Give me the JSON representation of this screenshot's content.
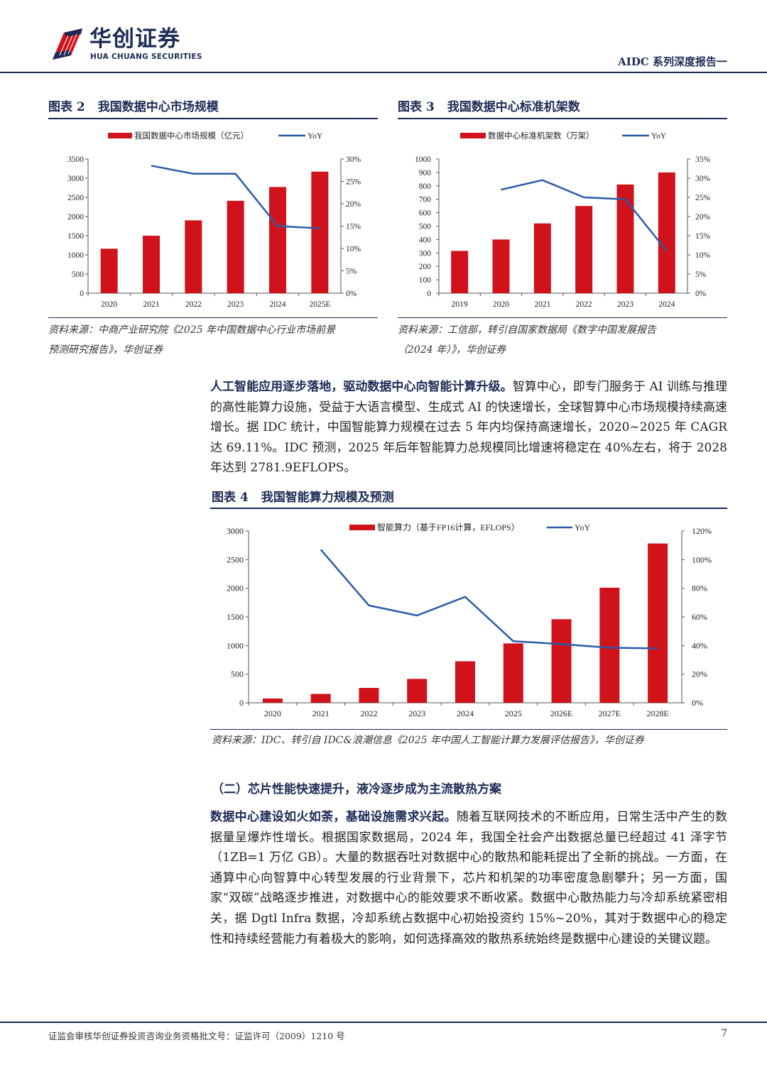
{
  "header": {
    "logo_cn": "华创证券",
    "logo_en": "HUA CHUANG SECURITIES",
    "report_series": "AIDC 系列深度报告一",
    "brand_colors": {
      "navy": "#1d2a55",
      "red": "#d0121b"
    }
  },
  "figure2": {
    "label": "图表 2",
    "title": "我国数据中心市场规模",
    "source_line1": "资料来源：中商产业研究院《2025 年中国数据中心行业市场前景",
    "source_line2": "预测研究报告》，华创证券"
  },
  "figure3": {
    "label": "图表 3",
    "title": "我国数据中心标准机架数",
    "source_line1": "资料来源：工信部，转引自国家数据局《数字中国发展报告",
    "source_line2": "（2024 年）》，华创证券"
  },
  "figure4": {
    "label": "图表 4",
    "title": "我国智能算力规模及预测",
    "source": "资料来源：IDC、转引自 IDC&浪潮信息《2025 年中国人工智能计算力发展评估报告》，华创证券"
  },
  "chart_data": [
    {
      "type": "bar",
      "categories": [
        "2020",
        "2021",
        "2022",
        "2023",
        "2024",
        "2025E"
      ],
      "series": [
        {
          "name": "我国数据中心市场规模（亿元）",
          "type": "bar",
          "axis": "left",
          "color": "#d0121b",
          "values": [
            1160,
            1500,
            1900,
            2410,
            2770,
            3170
          ]
        },
        {
          "name": "YoY",
          "type": "line",
          "axis": "right",
          "color": "#2a5ba8",
          "values": [
            null,
            0.285,
            0.267,
            0.267,
            0.15,
            0.145
          ]
        }
      ],
      "left_axis": {
        "min": 0,
        "max": 3500,
        "ticks": [
          "0",
          "500",
          "1000",
          "1500",
          "2000",
          "2500",
          "3000",
          "3500"
        ]
      },
      "right_axis": {
        "min": 0,
        "max": 0.3,
        "ticks": [
          "0%",
          "5%",
          "10%",
          "15%",
          "20%",
          "25%",
          "30%"
        ]
      },
      "legend_position": "top-center"
    },
    {
      "type": "bar",
      "categories": [
        "2019",
        "2020",
        "2021",
        "2022",
        "2023",
        "2024"
      ],
      "series": [
        {
          "name": "数据中心标准机架数（万架）",
          "type": "bar",
          "axis": "left",
          "color": "#d0121b",
          "values": [
            315,
            400,
            520,
            650,
            810,
            900
          ]
        },
        {
          "name": "YoY",
          "type": "line",
          "axis": "right",
          "color": "#2a5ba8",
          "values": [
            null,
            0.27,
            0.295,
            0.25,
            0.245,
            0.11
          ]
        }
      ],
      "left_axis": {
        "min": 0,
        "max": 1000,
        "ticks": [
          "0",
          "100",
          "200",
          "300",
          "400",
          "500",
          "600",
          "700",
          "800",
          "900",
          "1000"
        ]
      },
      "right_axis": {
        "min": 0,
        "max": 0.35,
        "ticks": [
          "0%",
          "5%",
          "10%",
          "15%",
          "20%",
          "25%",
          "30%",
          "35%"
        ]
      },
      "legend_position": "top-center"
    },
    {
      "type": "bar",
      "categories": [
        "2020",
        "2021",
        "2022",
        "2023",
        "2024",
        "2025",
        "2026E",
        "2027E",
        "2028E"
      ],
      "series": [
        {
          "name": "智能算力（基于FP16计算，EFLOPS）",
          "type": "bar",
          "axis": "left",
          "color": "#d0121b",
          "values": [
            75,
            155,
            260,
            417,
            725,
            1037,
            1460,
            2010,
            2781.9
          ]
        },
        {
          "name": "YoY",
          "type": "line",
          "axis": "right",
          "color": "#2a5ba8",
          "values": [
            null,
            1.07,
            0.68,
            0.61,
            0.74,
            0.43,
            0.41,
            0.385,
            0.38
          ]
        }
      ],
      "left_axis": {
        "min": 0,
        "max": 3000,
        "ticks": [
          "0",
          "500",
          "1000",
          "1500",
          "2000",
          "2500",
          "3000"
        ]
      },
      "right_axis": {
        "min": 0,
        "max": 1.2,
        "ticks": [
          "0%",
          "20%",
          "40%",
          "60%",
          "80%",
          "100%",
          "120%"
        ]
      },
      "legend_position": "top-center"
    }
  ],
  "para1": {
    "bold": "人工智能应用逐步落地，驱动数据中心向智能计算升级。",
    "text": "智算中心，即专门服务于 AI 训练与推理的高性能算力设施，受益于大语言模型、生成式 AI 的快速增长，全球智算中心市场规模持续高速增长。据 IDC 统计，中国智能算力规模在过去 5 年内均保持高速增长，2020~2025 年 CAGR 达 69.11%。IDC 预测，2025 年后年智能算力总规模同比增速将稳定在 40%左右，将于 2028 年达到 2781.9EFLOPS。"
  },
  "section_heading": "（二）芯片性能快速提升，液冷逐步成为主流散热方案",
  "para2": {
    "bold": "数据中心建设如火如荼，基础设施需求兴起。",
    "text": "随着互联网技术的不断应用，日常生活中产生的数据量呈爆炸性增长。根据国家数据局，2024 年，我国全社会产出数据总量已经超过 41 泽字节（1ZB=1 万亿 GB）。大量的数据吞吐对数据中心的散热和能耗提出了全新的挑战。一方面，在通算中心向智算中心转型发展的行业背景下，芯片和机架的功率密度急剧攀升；另一方面，国家“双碳”战略逐步推进，对数据中心的能效要求不断收紧。数据中心散热能力与冷却系统紧密相关，据 Dgtl Infra 数据，冷却系统占数据中心初始投资约 15%~20%，其对于数据中心的稳定性和持续经营能力有着极大的影响，如何选择高效的散热系统始终是数据中心建设的关键议题。"
  },
  "footer": {
    "license": "证监会审核华创证券投资咨询业务资格批文号：证监许可（2009）1210 号",
    "page": "7"
  }
}
